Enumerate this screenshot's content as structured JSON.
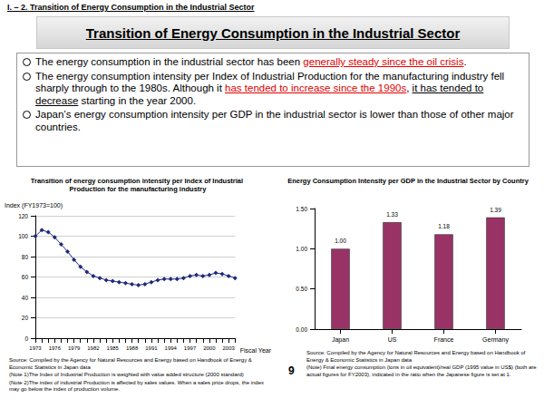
{
  "header": "I. – 2. Transition of Energy Consumption in the Industrial Sector",
  "title": "Transition of Energy Consumption in the Industrial Sector",
  "bullets": [
    [
      {
        "text": "The energy consumption in the industrial sector has been "
      },
      {
        "text": "generally steady since the oil crisis",
        "style": "red-underline"
      },
      {
        "text": "."
      }
    ],
    [
      {
        "text": "The energy consumption intensity per Index of Industrial Production for the manufacturing industry fell sharply through to the 1980s. Although it "
      },
      {
        "text": "has tended to increase since the 1990s",
        "style": "red-underline"
      },
      {
        "text": ", "
      },
      {
        "text": "it has tended to decrease",
        "style": "underline"
      },
      {
        "text": " starting in the year 2000."
      }
    ],
    [
      {
        "text": "Japan’s energy consumption intensity per GDP in the industrial sector is lower than those of other major countries."
      }
    ]
  ],
  "chart_data": [
    {
      "type": "line",
      "title": "Transition of energy consumption intensity per Index of Industrial Production for the manufacturing industry",
      "ylabel": "Index (FY1973=100)",
      "xlabel": "Fiscal Year",
      "categories": [
        "1973",
        null,
        null,
        "1976",
        null,
        null,
        "1979",
        null,
        null,
        "1982",
        null,
        null,
        "1985",
        null,
        null,
        "1988",
        null,
        null,
        "1991",
        null,
        null,
        "1994",
        null,
        null,
        "1997",
        null,
        null,
        "2000",
        null,
        null,
        "2003",
        null
      ],
      "values": [
        100,
        106,
        104,
        99,
        92,
        85,
        77,
        70,
        65,
        61,
        59,
        57,
        56,
        55,
        54,
        53,
        52,
        53,
        55,
        57,
        58,
        58,
        58,
        59,
        61,
        62,
        61,
        62,
        64,
        63,
        61,
        59
      ],
      "color": "#1f2a7a",
      "marker": "diamond",
      "ylim": [
        0,
        120
      ],
      "yticks": [
        0,
        20,
        40,
        60,
        80,
        100,
        120
      ],
      "grid": true
    },
    {
      "type": "bar",
      "title": "Energy Consumption Intensity per GDP in the Industrial Sector by Country",
      "categories": [
        "Japan",
        "US",
        "France",
        "Germany"
      ],
      "values": [
        1.0,
        1.33,
        1.18,
        1.39
      ],
      "value_labels": [
        "1.00",
        "1.33",
        "1.18",
        "1.39"
      ],
      "data_labels": true,
      "color": "#993366",
      "ylim": [
        0,
        1.5
      ],
      "yticks": [
        {
          "value": 0,
          "label": "0.00"
        },
        {
          "value": 0.5,
          "label": "0.50"
        },
        {
          "value": 1,
          "label": "1.00"
        },
        {
          "value": 1.5,
          "label": "1.50"
        }
      ],
      "grid": false
    }
  ],
  "notes_left": [
    "Source:  Compiled by the Agency for Natural Resources and Energy based on Handbook of Energy & Economic Statistics in Japan data",
    "(Note 1)The Index of Industrial Production is weighted with value added structure (2000 standard)",
    "(Note 2)The index of industrial Production is affected by sales values. When a sales price drops, the index may go below the index of production volume."
  ],
  "notes_right": [
    "Source: Compiled by the Agency for Natural Resources and Energy based on Handbook of Energy & Economic Statistics in Japan data",
    "(Note)   Final energy consumption (tons in oil equivalent)/real GDP (1995 value in US$) (both are actual figures for FY2003), indicated in the ratio when the Japanese figure is set at 1."
  ],
  "page_number": "9"
}
